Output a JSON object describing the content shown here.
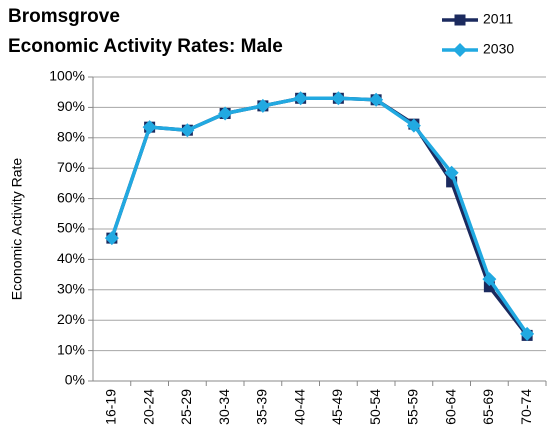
{
  "chart_data": {
    "type": "line",
    "title": "Bromsgrove",
    "subtitle": "Economic Activity Rates: Male",
    "y_label": "Economic Activity Rate",
    "categories": [
      "16-19",
      "20-24",
      "25-29",
      "30-34",
      "35-39",
      "40-44",
      "45-49",
      "50-54",
      "55-59",
      "60-64",
      "65-69",
      "70-74"
    ],
    "series": [
      {
        "name": "2011",
        "color": "#1b2a5e",
        "marker": "square",
        "values": [
          47,
          83.5,
          82.5,
          88,
          90.5,
          93,
          93,
          92.5,
          84.5,
          65.5,
          31,
          15
        ]
      },
      {
        "name": "2030",
        "color": "#21a9e1",
        "marker": "diamond",
        "values": [
          47,
          83.5,
          82.5,
          88,
          90.5,
          93,
          93,
          92.5,
          84,
          68.5,
          33.5,
          15.5
        ]
      }
    ],
    "ylim": [
      0,
      100
    ],
    "yticks": [
      {
        "value": 0,
        "label": "0%"
      },
      {
        "value": 10,
        "label": "10%"
      },
      {
        "value": 20,
        "label": "20%"
      },
      {
        "value": 30,
        "label": "30%"
      },
      {
        "value": 40,
        "label": "40%"
      },
      {
        "value": 50,
        "label": "50%"
      },
      {
        "value": 60,
        "label": "60%"
      },
      {
        "value": 70,
        "label": "70%"
      },
      {
        "value": 80,
        "label": "80%"
      },
      {
        "value": 90,
        "label": "90%"
      },
      {
        "value": 100,
        "label": "100%"
      }
    ],
    "grid": true,
    "legend": "top-right"
  }
}
